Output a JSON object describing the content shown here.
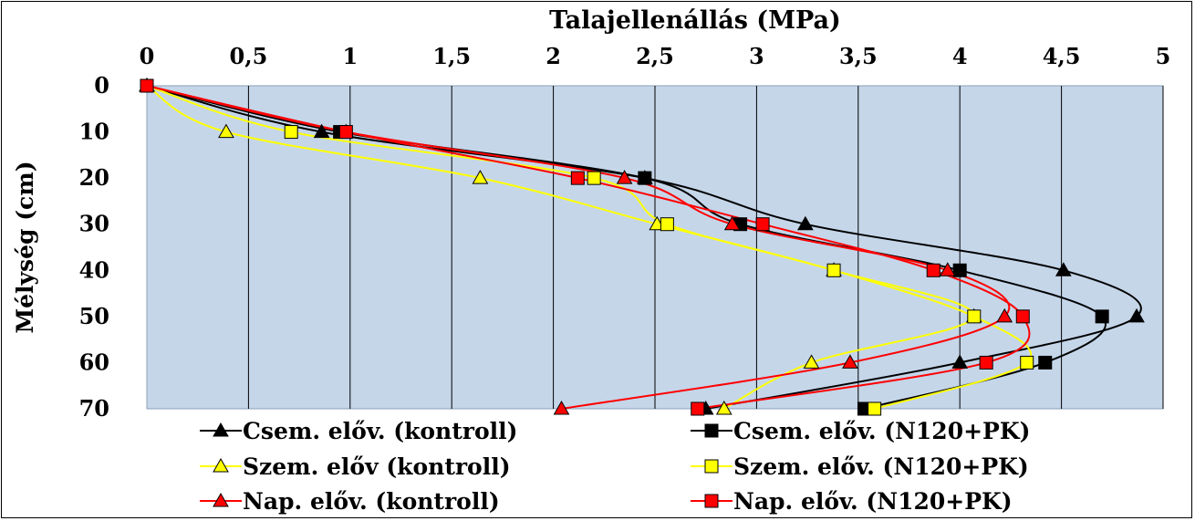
{
  "chart_data": {
    "type": "line",
    "title": "",
    "xlabel": "Talajellenállás (MPa)",
    "ylabel": "Mélység (cm)",
    "xlim": [
      0,
      5
    ],
    "ylim": [
      0,
      70
    ],
    "x_axis_position": "top",
    "y_axis_inverted": true,
    "x_ticks": [
      0,
      0.5,
      1,
      1.5,
      2,
      2.5,
      3,
      3.5,
      4,
      4.5,
      5
    ],
    "x_tick_labels": [
      "0",
      "0,5",
      "1",
      "1,5",
      "2",
      "2,5",
      "3",
      "3,5",
      "4",
      "4,5",
      "5"
    ],
    "y_ticks": [
      0,
      10,
      20,
      30,
      40,
      50,
      60,
      70
    ],
    "y_tick_labels": [
      "0",
      "10",
      "20",
      "30",
      "40",
      "50",
      "60",
      "70"
    ],
    "grid": "vertical",
    "plot_background": "#c5d6e9",
    "legend_position": "bottom",
    "depths": [
      0,
      10,
      20,
      30,
      40,
      50,
      60,
      70
    ],
    "series": [
      {
        "name": "Csem. előv. (kontroll)",
        "color": "#000000",
        "marker": "triangle",
        "values": [
          0,
          0.86,
          2.45,
          3.24,
          4.51,
          4.87,
          4.0,
          2.75
        ]
      },
      {
        "name": "Csem. előv. (N120+PK)",
        "color": "#000000",
        "marker": "square",
        "values": [
          0,
          0.95,
          2.45,
          2.92,
          4.0,
          4.7,
          4.42,
          3.53
        ]
      },
      {
        "name": "Szem. előv (kontroll)",
        "color": "#ffff00",
        "marker": "triangle",
        "values": [
          0,
          0.39,
          1.64,
          2.51,
          3.38,
          4.07,
          3.27,
          2.84
        ]
      },
      {
        "name": "Szem. előv. (N120+PK)",
        "color": "#ffff00",
        "marker": "square",
        "values": [
          0,
          0.71,
          2.2,
          2.56,
          3.38,
          4.07,
          4.33,
          3.58
        ]
      },
      {
        "name": "Nap. előv. (kontroll)",
        "color": "#ff0000",
        "marker": "triangle",
        "values": [
          0,
          0.98,
          2.35,
          2.88,
          3.94,
          4.22,
          3.46,
          2.04
        ]
      },
      {
        "name": "Nap. előv. (N120+PK)",
        "color": "#ff0000",
        "marker": "square",
        "values": [
          0,
          0.98,
          2.12,
          3.03,
          3.87,
          4.31,
          4.13,
          2.71
        ]
      }
    ]
  }
}
